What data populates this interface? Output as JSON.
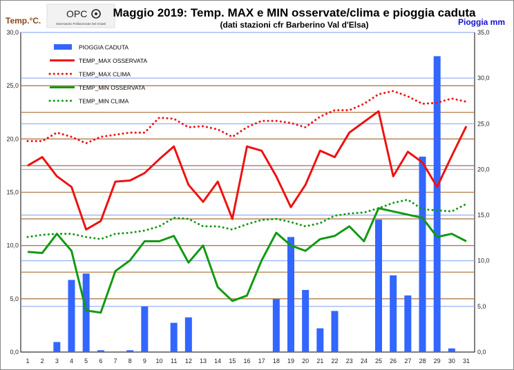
{
  "logo": {
    "text": "OPC",
    "subtext": "Osservatorio Polifunzionale Del Chianti"
  },
  "chart_data": {
    "type": "bar+line",
    "title": "Maggio 2019: Temp. MAX e MIN osservate/clima e pioggia caduta",
    "subtitle": "(dati stazioni cfr Barberino Val d'Elsa)",
    "ylabel_left": "Temp.°C.",
    "ylabel_right": "Pioggia mm",
    "ylim_left": [
      0,
      30
    ],
    "ylim_right": [
      0,
      35
    ],
    "yticks_left": [
      "0,0",
      "5,0",
      "10,0",
      "15,0",
      "20,0",
      "25,0",
      "30,0"
    ],
    "yticks_right": [
      "0,0",
      "5,0",
      "10,0",
      "15,0",
      "20,0",
      "25,0",
      "30,0",
      "35,0"
    ],
    "categories": [
      "1",
      "2",
      "3",
      "4",
      "5",
      "6",
      "7",
      "8",
      "9",
      "10",
      "11",
      "12",
      "13",
      "14",
      "15",
      "16",
      "17",
      "18",
      "19",
      "20",
      "21",
      "22",
      "23",
      "24",
      "25",
      "26",
      "27",
      "28",
      "29",
      "30",
      "31"
    ],
    "legend_position": "top-left",
    "grid": true,
    "series": [
      {
        "name": "PIOGGIA CADUTA",
        "type": "bar",
        "axis": "right",
        "color": "#3366ff",
        "values": [
          0,
          0,
          1.1,
          7.9,
          8.6,
          0.2,
          0,
          0.2,
          5.0,
          0,
          3.2,
          3.8,
          0,
          0,
          0,
          0,
          0,
          5.8,
          12.6,
          6.8,
          2.6,
          4.5,
          0,
          0,
          14.5,
          8.4,
          6.2,
          21.4,
          32.4,
          0.4,
          0
        ]
      },
      {
        "name": "TEMP_MAX OSSERVATA",
        "type": "line",
        "axis": "left",
        "color": "#ee1111",
        "style": "solid",
        "values": [
          17.5,
          18.3,
          16.5,
          15.5,
          11.5,
          12.3,
          16.0,
          16.1,
          16.8,
          18.1,
          19.3,
          15.7,
          14.1,
          16.0,
          12.5,
          19.3,
          18.9,
          16.5,
          13.6,
          15.7,
          18.9,
          18.3,
          20.6,
          21.6,
          22.6,
          16.5,
          18.8,
          17.8,
          15.5,
          18.4,
          21.2
        ]
      },
      {
        "name": "TEMP_MAX CLIMA",
        "type": "line",
        "axis": "left",
        "color": "#ee1111",
        "style": "dotted",
        "values": [
          19.8,
          19.8,
          20.6,
          20.2,
          19.6,
          20.2,
          20.4,
          20.6,
          20.6,
          22.0,
          21.9,
          21.1,
          21.2,
          20.9,
          20.2,
          21.1,
          21.7,
          21.7,
          21.5,
          21.1,
          22.1,
          22.7,
          22.7,
          23.3,
          24.2,
          24.5,
          24.0,
          23.3,
          23.4,
          23.8,
          23.5
        ]
      },
      {
        "name": "TEMP_MIN OSSERVATA",
        "type": "line",
        "axis": "left",
        "color": "#119911",
        "style": "solid",
        "values": [
          9.4,
          9.3,
          11.1,
          9.5,
          3.9,
          3.7,
          7.6,
          8.6,
          10.4,
          10.4,
          10.9,
          8.4,
          10.0,
          6.1,
          4.8,
          5.3,
          8.6,
          11.2,
          10.0,
          9.5,
          10.6,
          10.9,
          11.8,
          10.4,
          13.5,
          13.2,
          12.9,
          12.6,
          10.8,
          11.1,
          10.4
        ]
      },
      {
        "name": "TEMP_MIN CLIMA",
        "type": "line",
        "axis": "left",
        "color": "#119911",
        "style": "dotted",
        "values": [
          10.8,
          11.0,
          11.1,
          11.1,
          10.8,
          10.6,
          11.1,
          11.2,
          11.4,
          11.8,
          12.6,
          12.5,
          11.8,
          11.8,
          11.5,
          12.0,
          12.4,
          12.5,
          12.2,
          11.8,
          12.1,
          12.8,
          13.0,
          13.1,
          13.5,
          14.0,
          14.3,
          13.4,
          13.3,
          13.2,
          13.9
        ]
      }
    ]
  }
}
